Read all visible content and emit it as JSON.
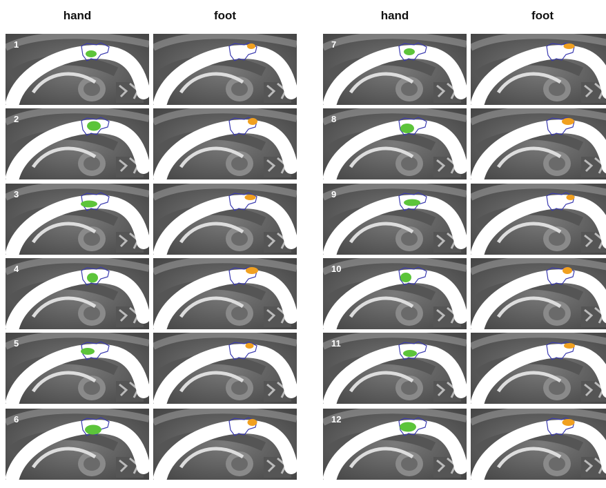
{
  "headers": [
    "hand",
    "foot",
    "hand",
    "foot"
  ],
  "subjects": [
    "1",
    "2",
    "3",
    "4",
    "5",
    "6",
    "7",
    "8",
    "9",
    "10",
    "11",
    "12"
  ]
}
